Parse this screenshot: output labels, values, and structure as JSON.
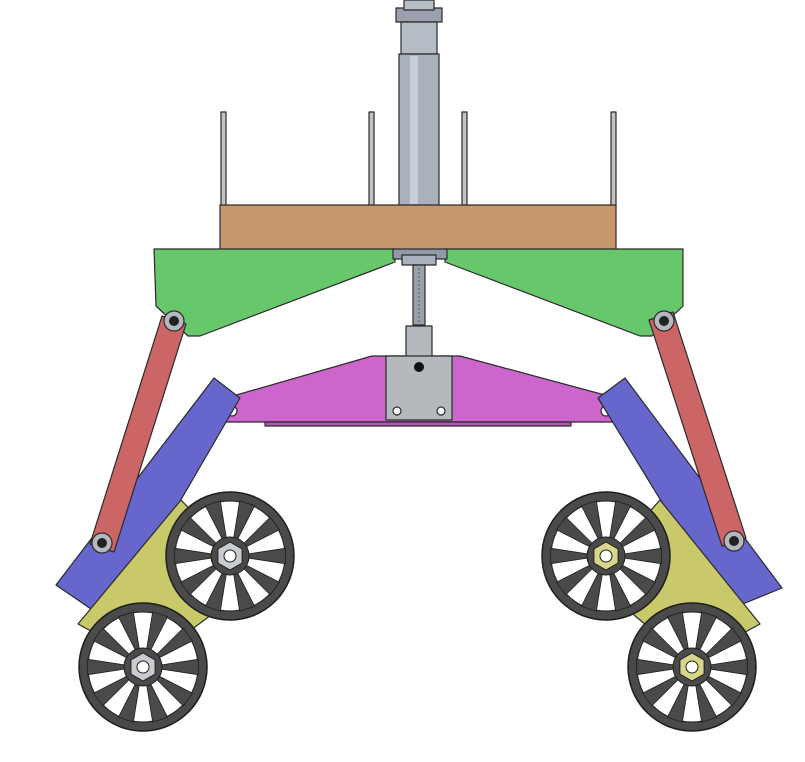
{
  "diagram": {
    "kind": "mechanical-assembly-render",
    "background": "#ffffff",
    "colors": {
      "top_plate": "#c8966b",
      "rods": "#bfc3c9",
      "actuator_body": "#a9b1bd",
      "green_frame": "#66c86a",
      "magenta_beam": "#cc66cc",
      "bracket": "#b5b8bd",
      "red_link": "#cc6666",
      "blue_arm": "#6666cc",
      "yellow_plate": "#c9c86a",
      "wheel": "#4a4a4a",
      "hub_gray": "#c8cbd0",
      "hub_yellow": "#d8d68a"
    },
    "parts": [
      {
        "id": "actuator",
        "icon": "linear-actuator-icon"
      },
      {
        "id": "top-plate",
        "icon": "plate-icon"
      },
      {
        "id": "guide-rods",
        "count": 4
      },
      {
        "id": "green-frame",
        "icon": "frame-icon"
      },
      {
        "id": "lead-screw",
        "icon": "screw-icon"
      },
      {
        "id": "magenta-beam",
        "icon": "beam-icon"
      },
      {
        "id": "red-links",
        "count": 2
      },
      {
        "id": "blue-arms",
        "count": 2
      },
      {
        "id": "yellow-plates",
        "count": 2
      },
      {
        "id": "wheels",
        "count": 4,
        "spokes": 10
      }
    ]
  }
}
